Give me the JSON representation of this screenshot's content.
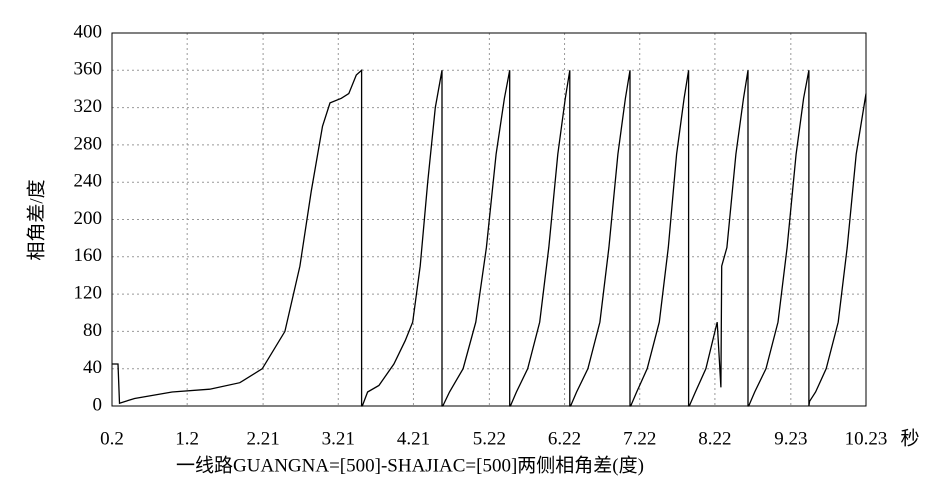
{
  "chart_data": {
    "type": "line",
    "ylabel": "相角差/度",
    "xlabel": "一线路GUANGNA=[500]-SHAJIAC=[500]两侧相角差(度)",
    "x_unit": "秒",
    "xlim": [
      0.2,
      10.23
    ],
    "xticks": [
      0.2,
      1.2,
      2.21,
      3.21,
      4.21,
      5.22,
      6.22,
      7.22,
      8.22,
      9.23,
      10.23
    ],
    "ylim": [
      0,
      400
    ],
    "yticks": [
      0,
      40,
      80,
      120,
      160,
      200,
      240,
      280,
      320,
      360,
      400
    ],
    "grid": true,
    "series": [
      {
        "color": "#000000",
        "x": [
          0.2,
          0.28,
          0.3,
          0.5,
          1.0,
          1.5,
          1.9,
          2.2,
          2.5,
          2.7,
          2.85,
          3.0,
          3.1,
          3.25,
          3.35,
          3.45,
          3.52,
          3.52,
          3.53,
          3.6,
          3.75,
          3.95,
          4.1,
          4.2,
          4.3,
          4.4,
          4.5,
          4.59,
          4.59,
          4.6,
          4.69,
          4.87,
          5.04,
          5.18,
          5.31,
          5.42,
          5.49,
          5.49,
          5.5,
          5.58,
          5.73,
          5.89,
          6.01,
          6.13,
          6.23,
          6.29,
          6.29,
          6.3,
          6.38,
          6.53,
          6.69,
          6.81,
          6.93,
          7.03,
          7.09,
          7.09,
          7.1,
          7.18,
          7.32,
          7.48,
          7.6,
          7.71,
          7.81,
          7.87,
          7.87,
          7.88,
          7.96,
          8.1,
          8.25,
          8.3,
          8.31,
          8.38,
          8.5,
          8.6,
          8.66,
          8.66,
          8.67,
          8.75,
          8.9,
          9.06,
          9.18,
          9.3,
          9.4,
          9.47,
          9.47,
          9.48,
          9.56,
          9.7,
          9.86,
          9.98,
          10.1,
          10.23
        ],
        "values": [
          45,
          45,
          3,
          8,
          15,
          18,
          25,
          40,
          80,
          150,
          230,
          300,
          325,
          330,
          335,
          355,
          360,
          0,
          0,
          15,
          22,
          45,
          70,
          90,
          150,
          240,
          320,
          360,
          0,
          0,
          15,
          40,
          90,
          170,
          270,
          330,
          360,
          0,
          0,
          15,
          40,
          90,
          170,
          270,
          330,
          360,
          0,
          0,
          15,
          40,
          90,
          170,
          270,
          330,
          360,
          0,
          0,
          15,
          40,
          90,
          170,
          270,
          330,
          360,
          0,
          0,
          15,
          40,
          90,
          20,
          150,
          170,
          270,
          330,
          360,
          0,
          0,
          15,
          40,
          90,
          170,
          270,
          330,
          360,
          0,
          5,
          15,
          40,
          90,
          170,
          270,
          335
        ]
      }
    ]
  }
}
